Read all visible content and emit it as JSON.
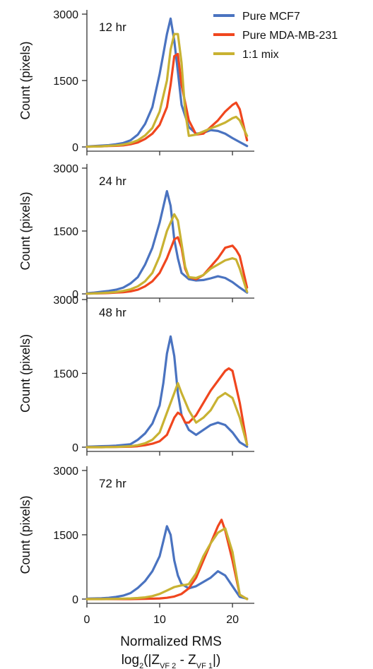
{
  "chart_data": {
    "type": "line",
    "legend_position": "top-right",
    "legend": [
      {
        "name": "Pure MCF7",
        "color": "#4a73c0"
      },
      {
        "name": "Pure MDA-MB-231",
        "color": "#f0461e"
      },
      {
        "name": "1:1 mix",
        "color": "#c8b232"
      }
    ],
    "ylabel": "Count (pixels)",
    "xlabel": "Normalized RMS",
    "xlabel_formula": {
      "prefix": "log",
      "base": "2",
      "open": "(|Z",
      "sub1": "VF 2",
      "middle": " - Z",
      "sub2": "VF 1",
      "close": "|)"
    },
    "xlim": [
      0,
      23
    ],
    "xticks": [
      0,
      10,
      20
    ],
    "ylim": [
      0,
      3000
    ],
    "yticks": [
      0,
      1500,
      3000
    ],
    "grid": false,
    "panels": [
      {
        "label": "12 hr",
        "series": [
          {
            "name": "Pure MCF7",
            "x": [
              0,
              1,
              2,
              3,
              4,
              5,
              6,
              7,
              8,
              9,
              10,
              10.5,
              11,
              11.5,
              12,
              12.5,
              13,
              14,
              15,
              16,
              17,
              18,
              19,
              20,
              21,
              22
            ],
            "y": [
              10,
              20,
              30,
              40,
              60,
              90,
              150,
              280,
              520,
              900,
              1650,
              2100,
              2550,
              2900,
              2400,
              1700,
              950,
              450,
              300,
              320,
              380,
              360,
              300,
              200,
              110,
              20
            ]
          },
          {
            "name": "Pure MDA-MB-231",
            "x": [
              0,
              1,
              2,
              3,
              4,
              5,
              6,
              7,
              8,
              9,
              10,
              11,
              11.5,
              12,
              12.5,
              13,
              14,
              15,
              16,
              17,
              18,
              19,
              20,
              20.5,
              21,
              22
            ],
            "y": [
              5,
              10,
              15,
              20,
              25,
              35,
              60,
              100,
              180,
              300,
              500,
              900,
              1400,
              2050,
              2100,
              1400,
              600,
              280,
              300,
              450,
              600,
              800,
              950,
              1000,
              850,
              150
            ]
          },
          {
            "name": "1:1 mix",
            "x": [
              0,
              1,
              2,
              3,
              4,
              5,
              6,
              7,
              8,
              9,
              10,
              11,
              11.5,
              12,
              12.5,
              13,
              13.5,
              14,
              15,
              16,
              17,
              18,
              19,
              20,
              20.5,
              21,
              22
            ],
            "y": [
              5,
              10,
              15,
              25,
              35,
              55,
              90,
              150,
              260,
              430,
              800,
              1500,
              2200,
              2550,
              2550,
              1900,
              800,
              250,
              280,
              350,
              420,
              480,
              550,
              650,
              680,
              600,
              250
            ]
          }
        ]
      },
      {
        "label": "24 hr",
        "series": [
          {
            "name": "Pure MCF7",
            "x": [
              0,
              1,
              2,
              3,
              4,
              5,
              6,
              7,
              8,
              9,
              10,
              11,
              11.5,
              12,
              12.5,
              13,
              14,
              15,
              16,
              17,
              18,
              19,
              20,
              21,
              22
            ],
            "y": [
              15,
              30,
              50,
              70,
              100,
              150,
              250,
              400,
              700,
              1100,
              1700,
              2450,
              2100,
              1300,
              850,
              500,
              350,
              320,
              330,
              370,
              420,
              380,
              280,
              150,
              30
            ]
          },
          {
            "name": "Pure MDA-MB-231",
            "x": [
              0,
              1,
              2,
              3,
              4,
              5,
              6,
              7,
              8,
              9,
              10,
              11,
              12,
              12.5,
              13,
              13.5,
              14,
              15,
              16,
              17,
              18,
              19,
              20,
              20.5,
              21,
              22
            ],
            "y": [
              5,
              10,
              15,
              20,
              30,
              40,
              60,
              100,
              180,
              300,
              500,
              850,
              1300,
              1350,
              1100,
              600,
              400,
              350,
              450,
              650,
              850,
              1100,
              1150,
              1050,
              900,
              150
            ]
          },
          {
            "name": "1:1 mix",
            "x": [
              0,
              1,
              2,
              3,
              4,
              5,
              6,
              7,
              8,
              9,
              10,
              11,
              12,
              12.5,
              13,
              13.5,
              14,
              15,
              16,
              17,
              18,
              19,
              20,
              20.5,
              21,
              22
            ],
            "y": [
              5,
              10,
              20,
              30,
              45,
              70,
              110,
              180,
              300,
              500,
              900,
              1500,
              1900,
              1750,
              1200,
              650,
              400,
              380,
              450,
              600,
              700,
              800,
              850,
              820,
              600,
              50
            ]
          }
        ]
      },
      {
        "label": "48 hr",
        "series": [
          {
            "name": "Pure MCF7",
            "x": [
              0,
              1,
              2,
              3,
              4,
              5,
              6,
              7,
              8,
              9,
              10,
              10.5,
              11,
              11.5,
              12,
              12.5,
              13,
              14,
              15,
              16,
              17,
              18,
              19,
              20,
              21,
              22
            ],
            "y": [
              10,
              15,
              20,
              25,
              30,
              45,
              60,
              150,
              280,
              480,
              850,
              1300,
              1900,
              2250,
              1850,
              1100,
              650,
              350,
              250,
              350,
              450,
              500,
              450,
              300,
              100,
              10
            ]
          },
          {
            "name": "Pure MDA-MB-231",
            "x": [
              0,
              2,
              4,
              6,
              7,
              8,
              9,
              10,
              11,
              12,
              12.5,
              13,
              13.5,
              14,
              15,
              16,
              17,
              18,
              19,
              19.5,
              20,
              21,
              22
            ],
            "y": [
              0,
              0,
              5,
              10,
              20,
              40,
              70,
              120,
              250,
              600,
              700,
              650,
              500,
              500,
              650,
              900,
              1150,
              1350,
              1550,
              1600,
              1550,
              900,
              50
            ]
          },
          {
            "name": "1:1 mix",
            "x": [
              0,
              2,
              4,
              6,
              7,
              8,
              9,
              10,
              11,
              12,
              12.5,
              13,
              14,
              15,
              16,
              17,
              18,
              19,
              20,
              21,
              22
            ],
            "y": [
              0,
              0,
              5,
              20,
              40,
              80,
              150,
              300,
              700,
              1100,
              1300,
              1100,
              750,
              500,
              600,
              750,
              1000,
              1100,
              1000,
              600,
              50
            ]
          }
        ]
      },
      {
        "label": "72 hr",
        "series": [
          {
            "name": "Pure MCF7",
            "x": [
              0,
              1,
              2,
              3,
              4,
              5,
              6,
              7,
              8,
              9,
              10,
              10.5,
              11,
              11.5,
              12,
              12.5,
              13,
              14,
              15,
              16,
              17,
              18,
              19,
              20,
              21,
              22
            ],
            "y": [
              10,
              15,
              20,
              30,
              50,
              80,
              140,
              260,
              420,
              650,
              1000,
              1350,
              1700,
              1500,
              900,
              550,
              350,
              250,
              300,
              400,
              500,
              650,
              550,
              300,
              50,
              10
            ]
          },
          {
            "name": "Pure MDA-MB-231",
            "x": [
              0,
              2,
              4,
              6,
              8,
              10,
              11,
              12,
              13,
              14,
              15,
              16,
              17,
              18,
              18.5,
              19,
              20,
              21,
              22
            ],
            "y": [
              0,
              0,
              0,
              0,
              5,
              15,
              30,
              60,
              120,
              250,
              500,
              900,
              1300,
              1700,
              1850,
              1600,
              900,
              100,
              0
            ]
          },
          {
            "name": "1:1 mix",
            "x": [
              0,
              2,
              4,
              6,
              7,
              8,
              9,
              10,
              11,
              12,
              13,
              13.5,
              14,
              15,
              16,
              17,
              18,
              19,
              20,
              21,
              22
            ],
            "y": [
              0,
              0,
              5,
              15,
              25,
              40,
              70,
              120,
              200,
              280,
              320,
              330,
              350,
              600,
              1000,
              1300,
              1550,
              1650,
              1100,
              100,
              0
            ]
          }
        ]
      }
    ]
  }
}
